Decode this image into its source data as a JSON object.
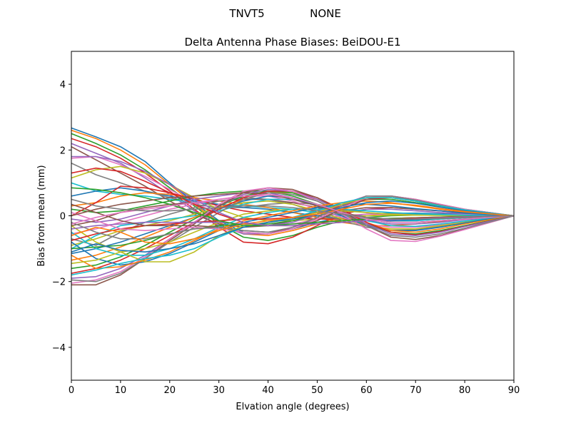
{
  "figure": {
    "suptitle_left": "TNVT5",
    "suptitle_right": "NONE"
  },
  "chart_data": {
    "type": "line",
    "title": "Delta Antenna Phase Biases: BeiDOU-E1",
    "xlabel": "Elvation angle (degrees)",
    "ylabel": "Bias from mean (mm)",
    "xlim": [
      0,
      90
    ],
    "ylim": [
      -5,
      5
    ],
    "xticks": [
      0,
      10,
      20,
      30,
      40,
      50,
      60,
      70,
      80,
      90
    ],
    "yticks": [
      -4,
      -2,
      0,
      2,
      4
    ],
    "ytick_labels": [
      "−4",
      "−2",
      "0",
      "2",
      "4"
    ],
    "grid": false,
    "legend": "none",
    "x": [
      0,
      5,
      10,
      15,
      20,
      25,
      30,
      35,
      40,
      45,
      50,
      55,
      60,
      65,
      70,
      75,
      80,
      85,
      90
    ],
    "colors": [
      "#1f77b4",
      "#ff7f0e",
      "#2ca02c",
      "#d62728",
      "#9467bd",
      "#8c564b",
      "#e377c2",
      "#7f7f7f",
      "#bcbd22",
      "#17becf"
    ],
    "series": [
      {
        "values": [
          2.67,
          2.4,
          2.1,
          1.65,
          1.0,
          0.4,
          -0.15,
          -0.5,
          -0.55,
          -0.4,
          -0.2,
          -0.05,
          0.05,
          0.08,
          0.08,
          0.06,
          0.04,
          0.02,
          0
        ]
      },
      {
        "values": [
          2.6,
          2.35,
          2.0,
          1.55,
          0.95,
          0.35,
          -0.2,
          -0.55,
          -0.6,
          -0.45,
          -0.25,
          -0.1,
          0.0,
          0.05,
          0.05,
          0.04,
          0.03,
          0.01,
          0
        ]
      },
      {
        "values": [
          2.5,
          2.2,
          1.85,
          1.4,
          0.85,
          0.3,
          -0.25,
          -0.65,
          -0.75,
          -0.6,
          -0.35,
          -0.15,
          -0.05,
          0.0,
          0.02,
          0.02,
          0.02,
          0.01,
          0
        ]
      },
      {
        "values": [
          2.35,
          2.1,
          1.75,
          1.3,
          0.75,
          0.2,
          -0.35,
          -0.8,
          -0.85,
          -0.65,
          -0.3,
          0.05,
          0.2,
          0.25,
          0.2,
          0.15,
          0.1,
          0.05,
          0
        ]
      },
      {
        "values": [
          2.2,
          1.9,
          1.6,
          1.15,
          0.65,
          0.15,
          -0.3,
          -0.55,
          -0.55,
          -0.35,
          -0.1,
          0.1,
          0.2,
          0.2,
          0.15,
          0.1,
          0.06,
          0.03,
          0
        ]
      },
      {
        "values": [
          2.1,
          1.7,
          1.3,
          0.9,
          0.45,
          0.05,
          -0.25,
          -0.35,
          -0.3,
          -0.15,
          0.0,
          0.15,
          0.25,
          0.25,
          0.2,
          0.15,
          0.1,
          0.05,
          0
        ]
      },
      {
        "values": [
          1.75,
          1.8,
          1.55,
          1.2,
          0.8,
          0.4,
          0.05,
          -0.2,
          -0.3,
          -0.25,
          -0.1,
          0.0,
          0.05,
          0.05,
          0.05,
          0.04,
          0.03,
          0.01,
          0
        ]
      },
      {
        "values": [
          1.6,
          1.25,
          1.0,
          0.75,
          0.55,
          0.35,
          0.25,
          0.25,
          0.35,
          0.4,
          0.35,
          0.2,
          0.1,
          0.05,
          0.03,
          0.02,
          0.01,
          0.0,
          0
        ]
      },
      {
        "values": [
          1.15,
          1.4,
          1.5,
          1.3,
          0.95,
          0.55,
          0.2,
          -0.05,
          -0.15,
          -0.15,
          -0.1,
          -0.05,
          0.0,
          0.02,
          0.02,
          0.02,
          0.01,
          0.0,
          0
        ]
      },
      {
        "values": [
          1.0,
          0.75,
          0.65,
          0.6,
          0.5,
          0.4,
          0.35,
          0.3,
          0.25,
          0.2,
          0.1,
          0.0,
          -0.1,
          -0.15,
          -0.15,
          -0.1,
          -0.06,
          -0.03,
          0
        ]
      },
      {
        "values": [
          0.6,
          0.75,
          0.85,
          0.75,
          0.6,
          0.45,
          0.35,
          0.25,
          0.2,
          0.1,
          0.0,
          -0.1,
          -0.15,
          -0.15,
          -0.12,
          -0.08,
          -0.05,
          -0.02,
          0
        ]
      },
      {
        "values": [
          0.3,
          0.4,
          0.6,
          0.7,
          0.65,
          0.55,
          0.45,
          0.35,
          0.25,
          0.1,
          -0.05,
          -0.2,
          -0.3,
          -0.3,
          -0.25,
          -0.18,
          -0.1,
          -0.05,
          0
        ]
      },
      {
        "values": [
          0.2,
          0.1,
          0.15,
          0.3,
          0.45,
          0.6,
          0.7,
          0.75,
          0.75,
          0.6,
          0.35,
          0.1,
          -0.1,
          -0.2,
          -0.2,
          -0.15,
          -0.1,
          -0.05,
          0
        ]
      },
      {
        "values": [
          0.0,
          0.4,
          0.9,
          0.85,
          0.7,
          0.5,
          0.3,
          0.15,
          0.05,
          -0.05,
          -0.1,
          -0.1,
          -0.1,
          -0.08,
          -0.06,
          -0.04,
          -0.02,
          -0.01,
          0
        ]
      },
      {
        "values": [
          -0.1,
          -0.2,
          -0.1,
          0.1,
          0.3,
          0.5,
          0.6,
          0.7,
          0.7,
          0.55,
          0.3,
          0.05,
          -0.15,
          -0.25,
          -0.25,
          -0.2,
          -0.12,
          -0.06,
          0
        ]
      },
      {
        "values": [
          -0.3,
          -0.15,
          0.1,
          0.25,
          0.35,
          0.4,
          0.45,
          0.5,
          0.5,
          0.4,
          0.25,
          0.05,
          -0.1,
          -0.2,
          -0.2,
          -0.15,
          -0.1,
          -0.05,
          0
        ]
      },
      {
        "values": [
          -0.55,
          -0.4,
          -0.2,
          0.0,
          0.2,
          0.35,
          0.5,
          0.6,
          0.6,
          0.45,
          0.2,
          -0.05,
          -0.25,
          -0.35,
          -0.35,
          -0.28,
          -0.18,
          -0.08,
          0
        ]
      },
      {
        "values": [
          -0.7,
          -0.9,
          -0.5,
          -0.2,
          0.05,
          0.25,
          0.45,
          0.55,
          0.5,
          0.35,
          0.1,
          -0.15,
          -0.35,
          -0.45,
          -0.42,
          -0.32,
          -0.2,
          -0.1,
          0
        ]
      },
      {
        "values": [
          -0.9,
          -0.7,
          -0.45,
          -0.3,
          -0.15,
          0.05,
          0.25,
          0.4,
          0.45,
          0.35,
          0.15,
          -0.1,
          -0.3,
          -0.4,
          -0.4,
          -0.3,
          -0.2,
          -0.1,
          0
        ]
      },
      {
        "values": [
          -1.0,
          -0.6,
          -0.3,
          -0.2,
          -0.1,
          0.0,
          0.15,
          0.35,
          0.5,
          0.5,
          0.35,
          0.1,
          -0.15,
          -0.3,
          -0.32,
          -0.25,
          -0.16,
          -0.08,
          0
        ]
      },
      {
        "values": [
          -1.15,
          -1.0,
          -0.8,
          -0.55,
          -0.3,
          -0.05,
          0.2,
          0.45,
          0.6,
          0.55,
          0.3,
          0.0,
          -0.3,
          -0.45,
          -0.45,
          -0.35,
          -0.22,
          -0.1,
          0
        ]
      },
      {
        "values": [
          -1.35,
          -1.2,
          -0.95,
          -0.65,
          -0.35,
          -0.05,
          0.25,
          0.5,
          0.7,
          0.7,
          0.5,
          0.15,
          -0.2,
          -0.45,
          -0.5,
          -0.4,
          -0.25,
          -0.12,
          0
        ]
      },
      {
        "values": [
          -1.6,
          -1.5,
          -1.25,
          -0.9,
          -0.5,
          -0.1,
          0.3,
          0.6,
          0.75,
          0.7,
          0.45,
          0.1,
          -0.25,
          -0.5,
          -0.55,
          -0.45,
          -0.3,
          -0.15,
          0
        ]
      },
      {
        "values": [
          -1.75,
          -1.6,
          -1.35,
          -1.0,
          -0.6,
          -0.2,
          0.2,
          0.55,
          0.75,
          0.75,
          0.55,
          0.2,
          -0.2,
          -0.5,
          -0.58,
          -0.48,
          -0.32,
          -0.16,
          0
        ]
      },
      {
        "values": [
          -1.9,
          -1.85,
          -1.6,
          -1.2,
          -0.7,
          -0.2,
          0.3,
          0.65,
          0.8,
          0.75,
          0.5,
          0.15,
          -0.25,
          -0.55,
          -0.6,
          -0.5,
          -0.33,
          -0.17,
          0
        ]
      },
      {
        "values": [
          -2.1,
          -2.1,
          -1.8,
          -1.3,
          -0.75,
          -0.25,
          0.3,
          0.7,
          0.85,
          0.8,
          0.55,
          0.15,
          -0.3,
          -0.65,
          -0.72,
          -0.6,
          -0.4,
          -0.2,
          0
        ]
      },
      {
        "values": [
          -2.05,
          -1.95,
          -1.7,
          -1.25,
          -0.7,
          -0.2,
          0.35,
          0.75,
          0.85,
          0.75,
          0.45,
          0.05,
          -0.4,
          -0.75,
          -0.78,
          -0.62,
          -0.42,
          -0.21,
          0
        ]
      },
      {
        "values": [
          -1.95,
          -2.0,
          -1.75,
          -1.3,
          -0.8,
          -0.35,
          0.1,
          0.5,
          0.7,
          0.65,
          0.45,
          0.1,
          -0.3,
          -0.6,
          -0.65,
          -0.55,
          -0.38,
          -0.19,
          0
        ]
      },
      {
        "values": [
          -0.3,
          -0.8,
          -1.1,
          -1.0,
          -0.8,
          -0.5,
          -0.2,
          0.05,
          0.15,
          0.2,
          0.2,
          0.15,
          0.1,
          0.05,
          0.02,
          0.01,
          0.0,
          0.0,
          0
        ]
      },
      {
        "values": [
          -0.5,
          -1.0,
          -1.2,
          -1.2,
          -1.0,
          -0.7,
          -0.35,
          -0.05,
          0.1,
          0.2,
          0.2,
          0.2,
          0.15,
          0.1,
          0.06,
          0.04,
          0.02,
          0.01,
          0
        ]
      },
      {
        "values": [
          -0.8,
          -1.3,
          -1.5,
          -1.4,
          -1.15,
          -0.8,
          -0.45,
          -0.2,
          -0.05,
          0.1,
          0.25,
          0.35,
          0.35,
          0.3,
          0.22,
          0.15,
          0.08,
          0.04,
          0
        ]
      },
      {
        "values": [
          -1.2,
          -1.6,
          -1.55,
          -1.35,
          -1.1,
          -0.75,
          -0.4,
          -0.15,
          0.0,
          0.15,
          0.3,
          0.4,
          0.45,
          0.4,
          0.3,
          0.2,
          0.12,
          0.06,
          0
        ]
      },
      {
        "values": [
          -1.0,
          -0.95,
          -0.9,
          -0.75,
          -0.55,
          -0.4,
          -0.3,
          -0.25,
          -0.25,
          -0.15,
          0.05,
          0.3,
          0.5,
          0.5,
          0.4,
          0.28,
          0.16,
          0.08,
          0
        ]
      },
      {
        "values": [
          -0.75,
          -0.55,
          -0.4,
          -0.3,
          -0.25,
          -0.2,
          -0.15,
          -0.1,
          -0.1,
          -0.05,
          0.1,
          0.3,
          0.5,
          0.55,
          0.45,
          0.32,
          0.18,
          0.09,
          0
        ]
      },
      {
        "values": [
          -0.4,
          -0.3,
          -0.25,
          -0.2,
          -0.2,
          -0.2,
          -0.2,
          -0.25,
          -0.3,
          -0.2,
          0.05,
          0.35,
          0.6,
          0.6,
          0.45,
          0.3,
          0.18,
          0.08,
          0
        ]
      },
      {
        "values": [
          0.35,
          0.1,
          -0.15,
          -0.3,
          -0.3,
          -0.3,
          -0.35,
          -0.45,
          -0.5,
          -0.4,
          -0.15,
          0.2,
          0.5,
          0.6,
          0.5,
          0.35,
          0.2,
          0.1,
          0
        ]
      },
      {
        "values": [
          0.1,
          -0.15,
          -0.4,
          -0.45,
          -0.4,
          -0.35,
          -0.4,
          -0.5,
          -0.55,
          -0.4,
          -0.1,
          0.25,
          0.55,
          0.6,
          0.5,
          0.35,
          0.2,
          0.1,
          0
        ]
      },
      {
        "values": [
          -0.2,
          -0.5,
          -0.7,
          -0.7,
          -0.55,
          -0.4,
          -0.35,
          -0.45,
          -0.5,
          -0.35,
          -0.05,
          0.3,
          0.6,
          0.6,
          0.48,
          0.32,
          0.18,
          0.09,
          0
        ]
      },
      {
        "values": [
          -1.45,
          -1.35,
          -1.1,
          -1.4,
          -1.4,
          -1.1,
          -0.6,
          -0.3,
          -0.2,
          -0.1,
          0.1,
          0.35,
          0.55,
          0.55,
          0.45,
          0.3,
          0.18,
          0.09,
          0
        ]
      },
      {
        "values": [
          -1.8,
          -1.65,
          -1.45,
          -1.3,
          -1.2,
          -1.0,
          -0.65,
          -0.35,
          -0.2,
          -0.05,
          0.15,
          0.4,
          0.55,
          0.55,
          0.45,
          0.3,
          0.18,
          0.09,
          0
        ]
      },
      {
        "values": [
          -1.1,
          -0.85,
          -1.05,
          -1.1,
          -1.0,
          -0.85,
          -0.6,
          -0.35,
          -0.2,
          -0.1,
          0.05,
          0.25,
          0.4,
          0.45,
          0.38,
          0.26,
          0.15,
          0.07,
          0
        ]
      },
      {
        "values": [
          -0.6,
          -0.35,
          -0.5,
          -0.8,
          -0.85,
          -0.7,
          -0.45,
          -0.25,
          -0.15,
          -0.05,
          0.05,
          0.2,
          0.35,
          0.38,
          0.32,
          0.22,
          0.13,
          0.06,
          0
        ]
      },
      {
        "values": [
          0.85,
          0.8,
          0.7,
          0.55,
          0.35,
          0.1,
          -0.15,
          -0.3,
          -0.3,
          -0.25,
          -0.2,
          -0.15,
          -0.1,
          -0.08,
          -0.06,
          -0.04,
          -0.02,
          -0.01,
          0
        ]
      },
      {
        "values": [
          1.3,
          1.45,
          1.35,
          1.05,
          0.7,
          0.35,
          0.05,
          -0.2,
          -0.3,
          -0.3,
          -0.25,
          -0.2,
          -0.15,
          -0.1,
          -0.07,
          -0.05,
          -0.03,
          -0.01,
          0
        ]
      },
      {
        "values": [
          1.8,
          1.8,
          1.65,
          1.35,
          0.95,
          0.5,
          0.1,
          -0.2,
          -0.3,
          -0.3,
          -0.25,
          -0.2,
          -0.15,
          -0.12,
          -0.09,
          -0.06,
          -0.03,
          -0.01,
          0
        ]
      },
      {
        "values": [
          0.0,
          0.2,
          0.35,
          0.45,
          0.55,
          0.6,
          0.65,
          0.7,
          0.65,
          0.5,
          0.3,
          0.1,
          -0.05,
          -0.1,
          -0.1,
          -0.08,
          -0.05,
          -0.02,
          0
        ]
      },
      {
        "values": [
          -0.25,
          -0.05,
          0.1,
          0.2,
          0.3,
          0.4,
          0.5,
          0.6,
          0.65,
          0.55,
          0.35,
          0.1,
          -0.1,
          -0.2,
          -0.2,
          -0.15,
          -0.1,
          -0.05,
          0
        ]
      },
      {
        "values": [
          0.5,
          0.3,
          0.2,
          0.15,
          0.15,
          0.2,
          0.25,
          0.3,
          0.3,
          0.25,
          0.15,
          0.05,
          -0.05,
          -0.1,
          -0.1,
          -0.08,
          -0.05,
          -0.02,
          0
        ]
      }
    ]
  }
}
